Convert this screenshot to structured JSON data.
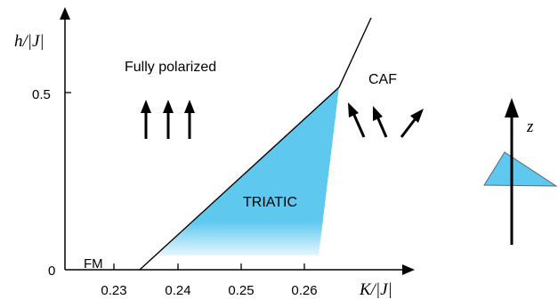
{
  "chart_data": {
    "type": "diagram",
    "x_axis": {
      "label": "K/|J|",
      "ticks": [
        "0.23",
        "0.24",
        "0.25",
        "0.26"
      ],
      "tick_values": [
        0.23,
        0.24,
        0.25,
        0.26
      ]
    },
    "y_axis": {
      "label": "h/|J|",
      "ticks": [
        "0",
        "0.5"
      ],
      "tick_values": [
        0,
        0.5
      ]
    },
    "regions": {
      "fully_polarized": "Fully polarized",
      "caf": "CAF",
      "triatic": "TRIATIC",
      "fm": "FM"
    },
    "boundaries": [
      {
        "name": "FP-TRIATIC",
        "points": [
          [
            0.2343,
            0
          ],
          [
            0.2633,
            0.5
          ]
        ]
      },
      {
        "name": "TRIATIC-CAF",
        "points": [
          [
            0.26,
            0
          ],
          [
            0.2633,
            0.5
          ]
        ]
      },
      {
        "name": "FP-CAF",
        "points": [
          [
            0.2633,
            0.5
          ],
          [
            0.2665,
            0.72
          ]
        ]
      }
    ],
    "inset": {
      "axis_label": "z"
    },
    "colors": {
      "triatic_fill": "#5ec8ef",
      "lines": "#000000"
    }
  }
}
